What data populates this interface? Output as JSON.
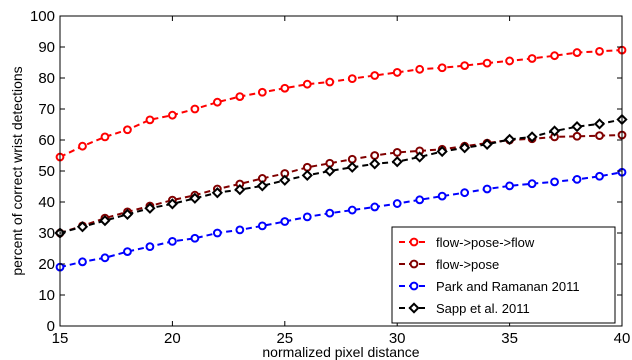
{
  "chart_data": {
    "type": "line",
    "xlabel": "normalized pixel distance",
    "ylabel": "percent of correct wrist detections",
    "xlim": [
      15,
      40
    ],
    "ylim": [
      0,
      100
    ],
    "x_ticks": [
      15,
      20,
      25,
      30,
      35,
      40
    ],
    "y_ticks": [
      0,
      10,
      20,
      30,
      40,
      50,
      60,
      70,
      80,
      90,
      100
    ],
    "grid": false,
    "legend_position": "bottom-right",
    "x": [
      15,
      16,
      17,
      18,
      19,
      20,
      21,
      22,
      23,
      24,
      25,
      26,
      27,
      28,
      29,
      30,
      31,
      32,
      33,
      34,
      35,
      36,
      37,
      38,
      39,
      40
    ],
    "series": [
      {
        "name": "flow->pose->flow",
        "color": "#ff0000",
        "marker": "circle",
        "values": [
          54.5,
          58,
          61,
          63.3,
          66.5,
          68,
          70,
          72.2,
          74,
          75.4,
          76.7,
          78,
          78.7,
          79.8,
          80.8,
          81.8,
          82.8,
          83.3,
          84,
          84.8,
          85.5,
          86.3,
          87.2,
          88.2,
          88.6,
          89
        ]
      },
      {
        "name": "flow->pose",
        "color": "#800000",
        "marker": "circle",
        "values": [
          30,
          32.3,
          34.8,
          36.8,
          38.7,
          40.6,
          42.2,
          44.2,
          45.8,
          47.6,
          49.2,
          51.2,
          52.5,
          53.8,
          55,
          56,
          56.5,
          57,
          58,
          59,
          60,
          60.4,
          61,
          61.2,
          61.4,
          61.6
        ]
      },
      {
        "name": "Park and Ramanan 2011",
        "color": "#0000ff",
        "marker": "circle",
        "values": [
          19,
          20.7,
          22,
          24,
          25.6,
          27.3,
          28.3,
          30,
          31,
          32.3,
          33.7,
          35.2,
          36.4,
          37.4,
          38.4,
          39.5,
          40.7,
          41.9,
          43,
          44.2,
          45.2,
          45.9,
          46.5,
          47.3,
          48.3,
          49.6
        ]
      },
      {
        "name": "Sapp et al. 2011",
        "color": "#000000",
        "marker": "diamond",
        "values": [
          30,
          32,
          34,
          36,
          38,
          39.4,
          41.2,
          43,
          44,
          45.2,
          47,
          48.6,
          50,
          51.2,
          52.3,
          53,
          54.5,
          56.3,
          57.5,
          58.6,
          60.2,
          61,
          62.9,
          64.3,
          65.2,
          66.6
        ]
      }
    ]
  }
}
